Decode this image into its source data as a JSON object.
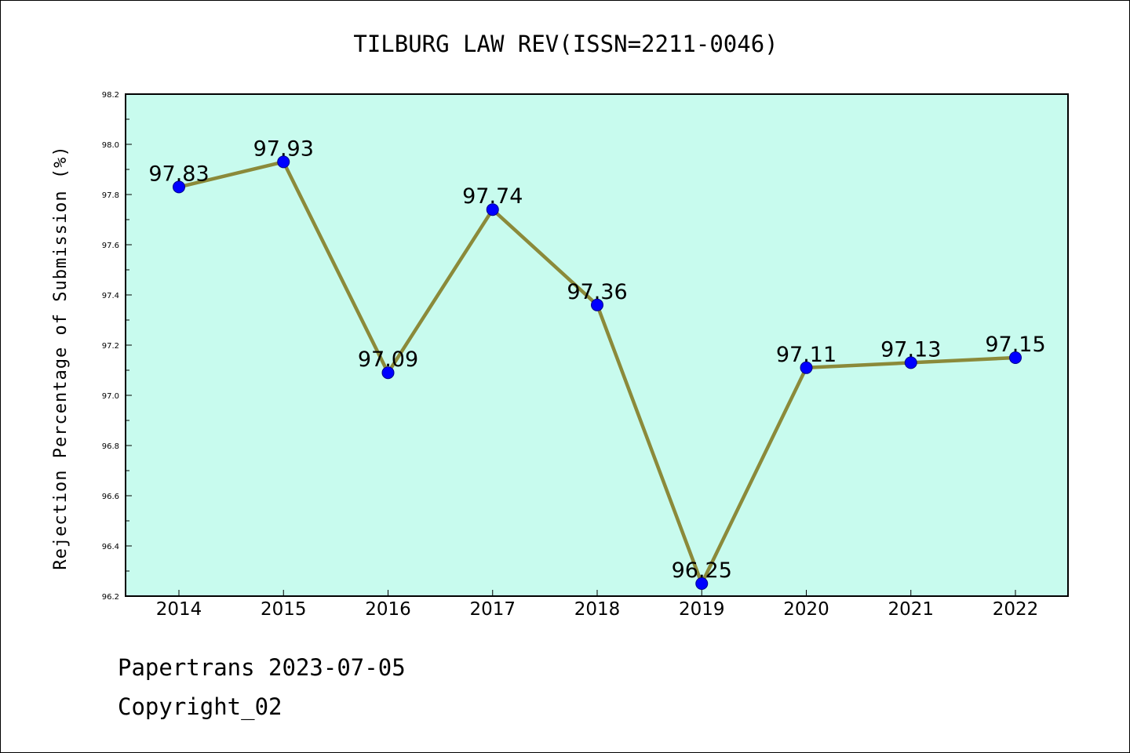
{
  "chart_data": {
    "type": "line",
    "title": "TILBURG LAW REV(ISSN=2211-0046)",
    "xlabel": "",
    "ylabel": "Rejection Percentage of Submission (%)",
    "categories": [
      "2014",
      "2015",
      "2016",
      "2017",
      "2018",
      "2019",
      "2020",
      "2021",
      "2022"
    ],
    "series": [
      {
        "values": [
          97.83,
          97.93,
          97.09,
          97.74,
          97.36,
          96.25,
          97.11,
          97.13,
          97.15
        ],
        "data_labels": [
          "97.83",
          "97.93",
          "97.09",
          "97.74",
          "97.36",
          "96.25",
          "97.11",
          "97.13",
          "97.15"
        ]
      }
    ],
    "ylim": [
      96.2,
      98.2
    ],
    "yticks": [
      "96.2",
      "96.4",
      "96.6",
      "96.8",
      "97.0",
      "97.2",
      "97.4",
      "97.6",
      "97.8",
      "98.0",
      "98.2"
    ],
    "grid": false,
    "colors": {
      "plot_background": "#c8fbee",
      "line": "#8b8a3a",
      "marker": "#0000ff",
      "marker_edge": "#00008b"
    }
  },
  "footer": {
    "source": "Papertrans 2023-07-05",
    "copyright": "Copyright_02"
  }
}
